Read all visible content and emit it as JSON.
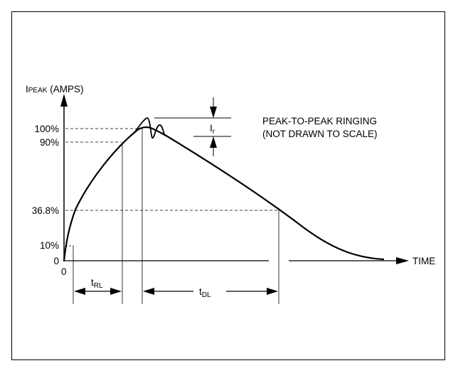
{
  "diagram": {
    "y_axis_label_main": "I",
    "y_axis_label_sub": "PEAK",
    "y_axis_label_unit": " (AMPS)",
    "x_axis_label": "TIME",
    "origin_label": "0",
    "y_ticks": [
      "100%",
      "90%",
      "36.8%",
      "10%",
      "0"
    ],
    "ringing_label_main": "I",
    "ringing_label_sub": "r",
    "note_line1": "PEAK-TO-PEAK RINGING",
    "note_line2": "(NOT DRAWN TO SCALE)",
    "rise_label_main": "t",
    "rise_label_sub": "RL",
    "decay_label_main": "t",
    "decay_label_sub": "DL"
  }
}
